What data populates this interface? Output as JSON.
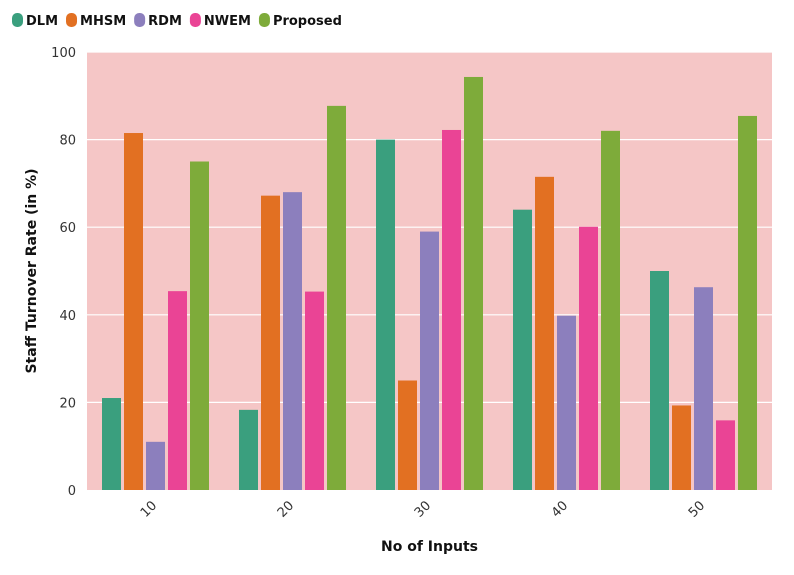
{
  "chart_data": {
    "type": "bar",
    "categories": [
      "10",
      "20",
      "30",
      "40",
      "50"
    ],
    "series": [
      {
        "name": "DLM",
        "color": "#3a9f7e",
        "values": [
          21,
          18.3,
          80,
          64,
          50
        ]
      },
      {
        "name": "MHSM",
        "color": "#e27022",
        "values": [
          81.5,
          67.2,
          25,
          71.5,
          19.3
        ]
      },
      {
        "name": "RDM",
        "color": "#8c7fbd",
        "values": [
          11,
          68,
          59,
          39.8,
          46.3
        ]
      },
      {
        "name": "NWEM",
        "color": "#ea4495",
        "values": [
          45.4,
          45.3,
          82.2,
          60.1,
          15.9
        ]
      },
      {
        "name": "Proposed",
        "color": "#7eab3a",
        "values": [
          75,
          87.7,
          94.3,
          82,
          85.4
        ]
      }
    ],
    "xlabel": "No of Inputs",
    "ylabel": "Staff Turnover Rate (in %)",
    "ylim": [
      0,
      100
    ],
    "yticks": [
      0,
      20,
      40,
      60,
      80,
      100
    ],
    "grid": true,
    "legend_position": "top-left",
    "plot_background": "#f5c6c6"
  }
}
